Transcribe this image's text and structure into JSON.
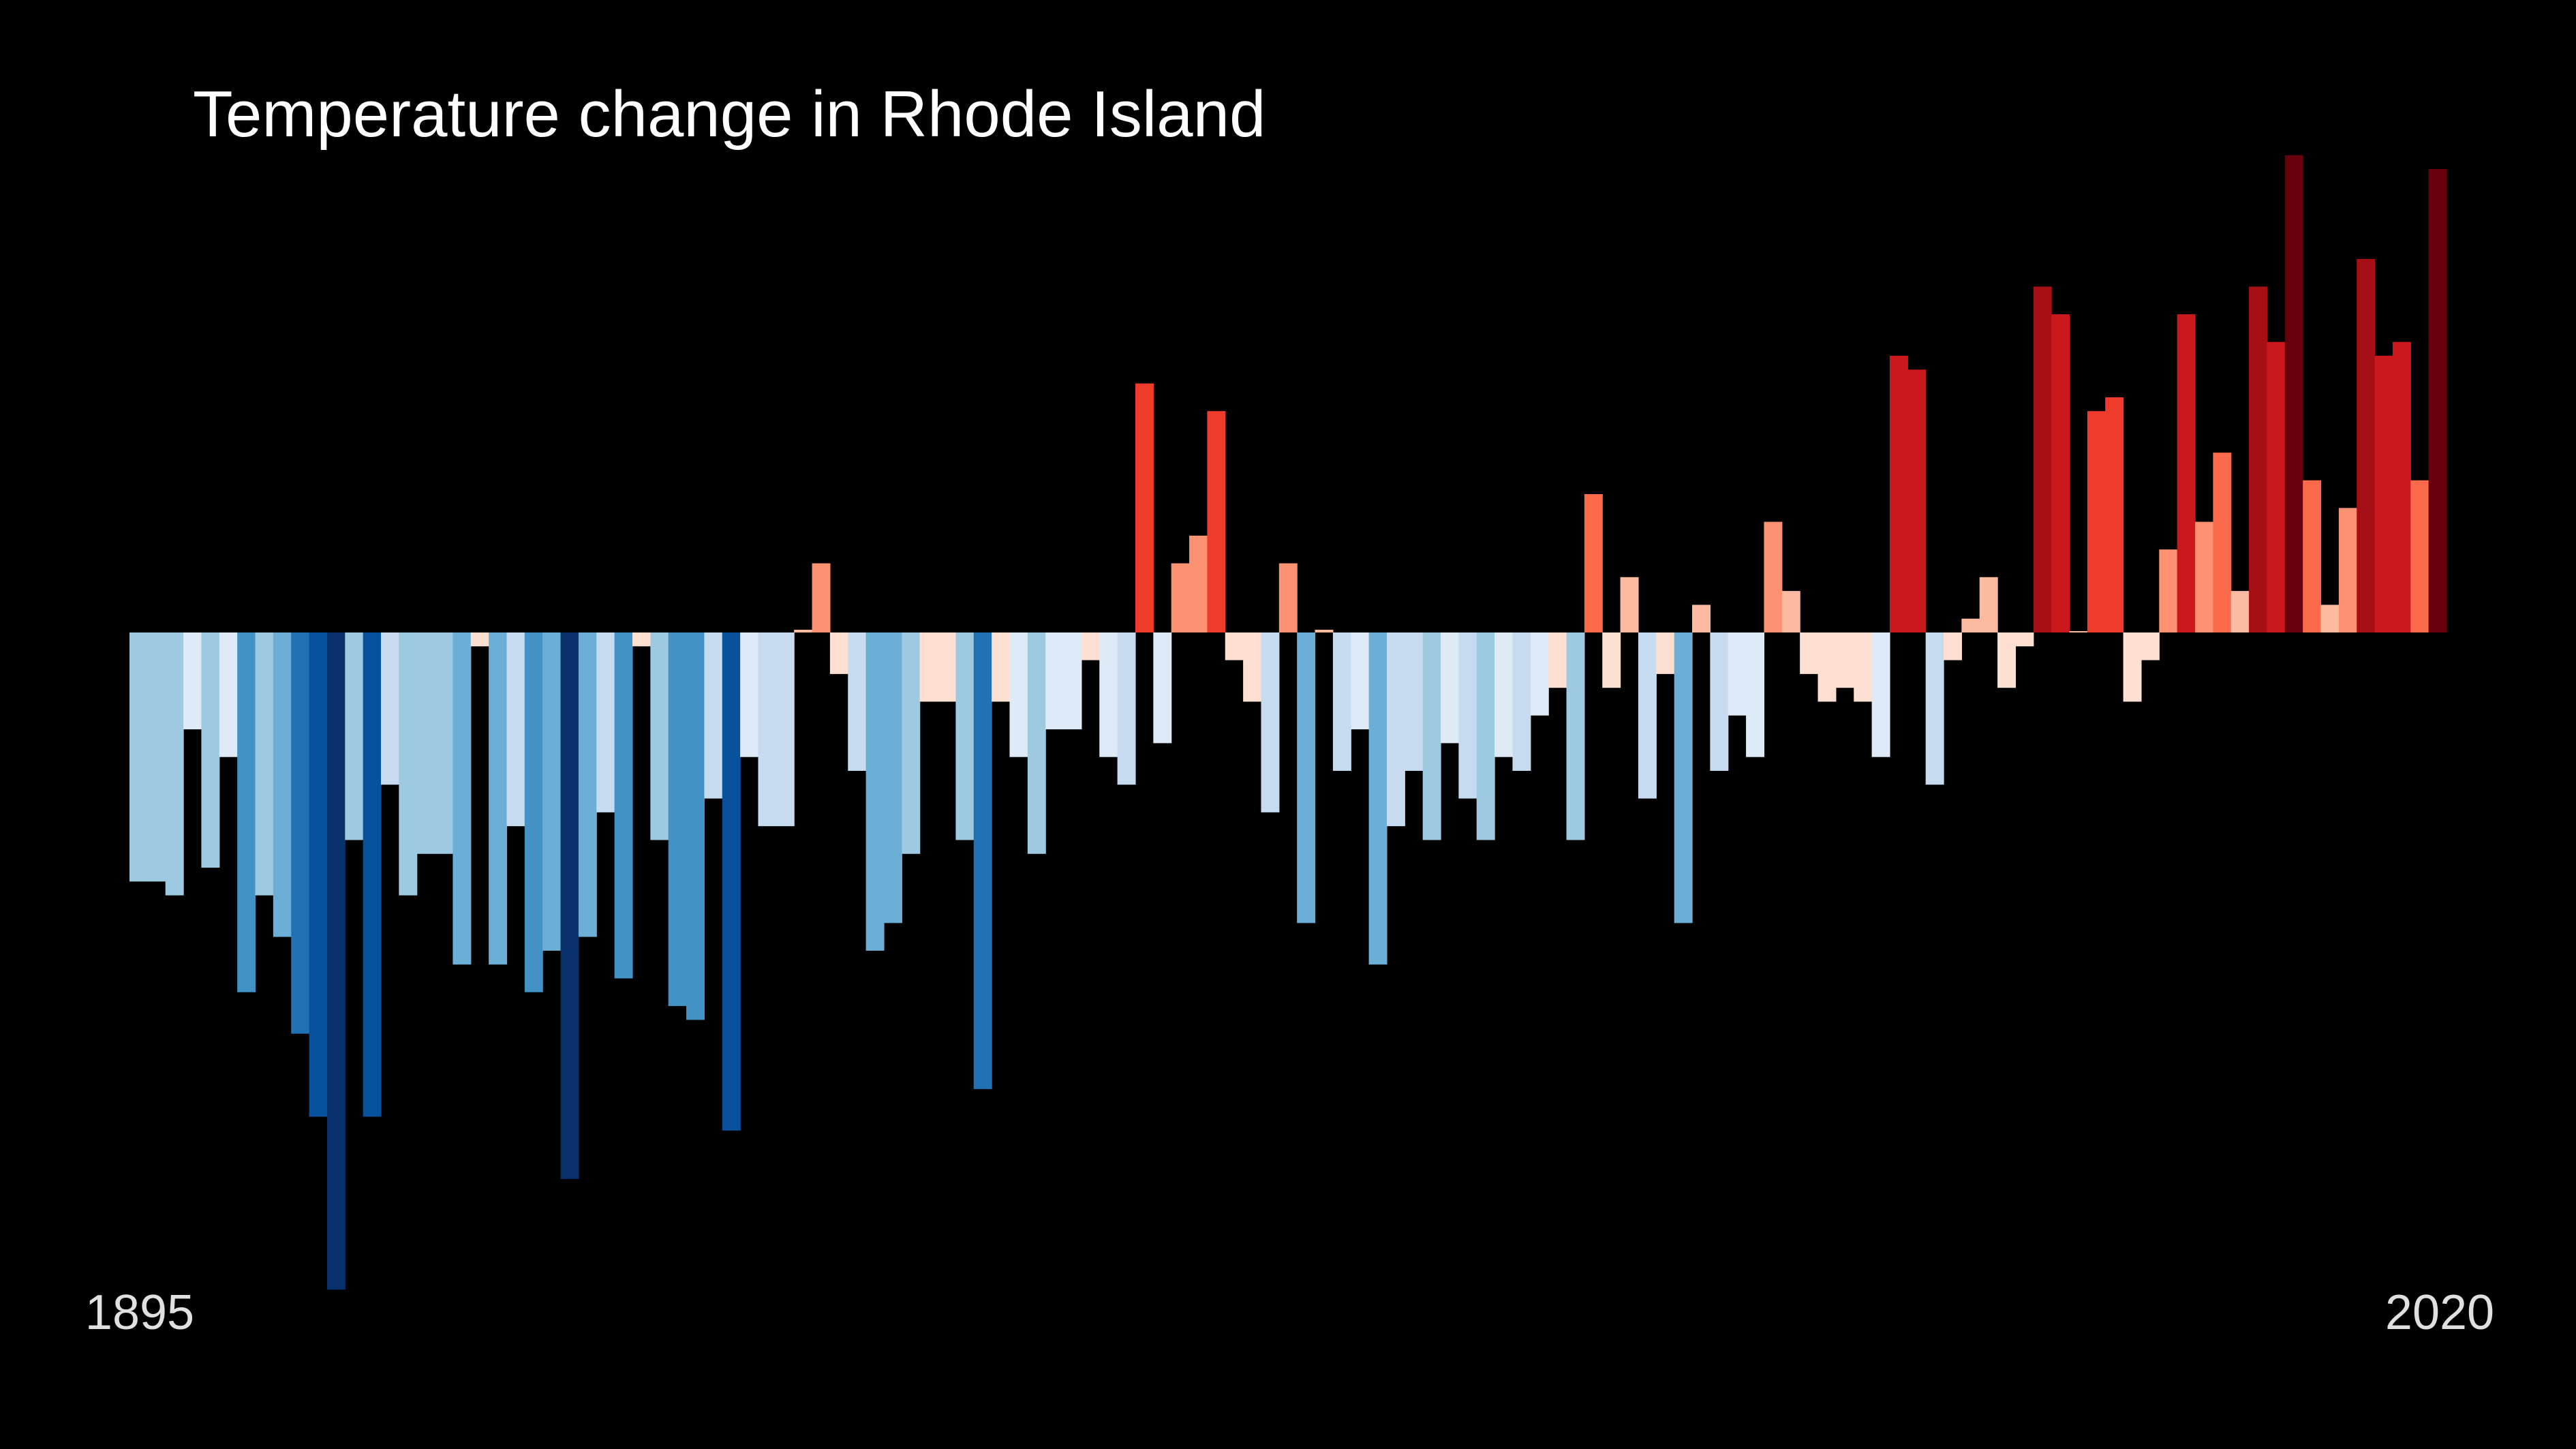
{
  "chart_data": {
    "type": "bar",
    "title": "Temperature change in Rhode Island",
    "xlabel": "",
    "ylabel": "",
    "x_start": 1895,
    "x_end": 2020,
    "tick_labels": [
      "1895",
      "2020"
    ],
    "ylim": [
      -4.9,
      3.7
    ],
    "grid": false,
    "legend": "none",
    "colors": {
      "background": "#000000",
      "scale": [
        "#08306b",
        "#08519c",
        "#2171b5",
        "#4292c6",
        "#6baed6",
        "#9ecae1",
        "#c6dbef",
        "#deebf7",
        "#fee0d2",
        "#fcbba1",
        "#fc9272",
        "#fb6a4a",
        "#ef3b2c",
        "#cb181d",
        "#a50f15",
        "#67000d"
      ]
    },
    "values": [
      -1.8,
      -1.8,
      -1.9,
      -0.7,
      -1.7,
      -0.9,
      -2.6,
      -1.9,
      -2.2,
      -2.9,
      -3.5,
      -4.75,
      -1.5,
      -3.5,
      -1.1,
      -1.9,
      -1.6,
      -1.6,
      -2.4,
      -0.1,
      -2.4,
      -1.4,
      -2.6,
      -2.3,
      -3.95,
      -2.2,
      -1.3,
      -2.5,
      -0.1,
      -1.5,
      -2.7,
      -2.8,
      -1.2,
      -3.6,
      -0.9,
      -1.4,
      -1.4,
      0.02,
      0.5,
      -0.3,
      -1.0,
      -2.3,
      -2.1,
      -1.6,
      -0.5,
      -0.5,
      -1.5,
      -3.3,
      -0.5,
      -0.9,
      -1.6,
      -0.7,
      -0.7,
      -0.2,
      -0.9,
      -1.1,
      1.8,
      -0.8,
      0.5,
      0.7,
      1.6,
      -0.2,
      -0.5,
      -1.3,
      0.5,
      -2.1,
      0.02,
      -1.0,
      -0.7,
      -2.4,
      -1.4,
      -1.0,
      -1.5,
      -0.8,
      -1.2,
      -1.5,
      -0.9,
      -1.0,
      -0.6,
      -0.4,
      -1.5,
      1.0,
      -0.4,
      0.4,
      -1.2,
      -0.3,
      -2.1,
      0.2,
      -1.0,
      -0.6,
      -0.9,
      0.8,
      0.3,
      -0.3,
      -0.5,
      -0.4,
      -0.5,
      -0.9,
      2.0,
      1.9,
      -1.1,
      -0.2,
      0.1,
      0.4,
      -0.4,
      -0.1,
      2.5,
      2.3,
      0.01,
      1.6,
      1.7,
      -0.5,
      -0.2,
      0.6,
      2.3,
      0.8,
      1.3,
      0.3,
      2.5,
      2.1,
      3.45,
      1.1,
      0.2,
      0.9,
      2.7,
      2.0,
      2.1,
      1.1,
      3.35
    ]
  }
}
